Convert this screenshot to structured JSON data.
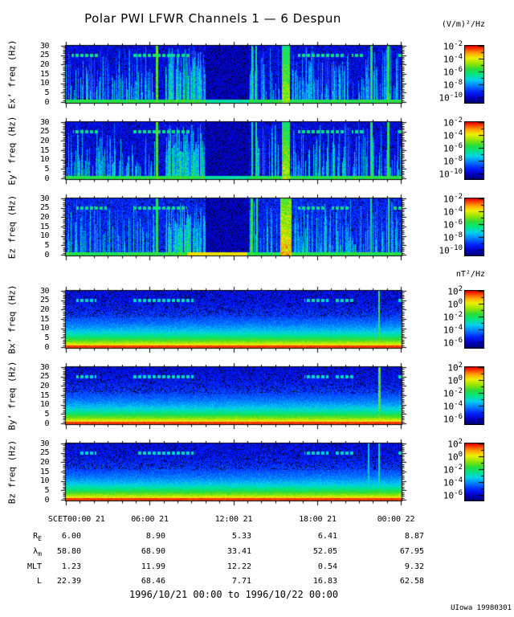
{
  "title": "Polar PWI LFWR Channels 1 — 6 Despun",
  "units": {
    "electric": "(V/m)²/Hz",
    "magnetic": "nT²/Hz"
  },
  "caption": "1996/10/21 00:00 to 1996/10/22 00:00",
  "credit": "UIowa 19980301",
  "time_axis": {
    "prefix": "SCET",
    "tick_labels": [
      "00:00 21",
      "06:00 21",
      "12:00 21",
      "18:00 21",
      "00:00 22"
    ],
    "hours_span": 24,
    "major_every_hours": 6,
    "minor_every_hours": 1
  },
  "ephemeris": [
    {
      "name": "R_E",
      "values": [
        "6.00",
        "8.90",
        "5.33",
        "6.41",
        "8.87"
      ]
    },
    {
      "name": "λ_m",
      "values": [
        "58.80",
        "68.90",
        "33.41",
        "52.05",
        "67.95"
      ]
    },
    {
      "name": "MLT",
      "values": [
        "1.23",
        "11.99",
        "12.22",
        "0.54",
        "9.32"
      ]
    },
    {
      "name": "L",
      "values": [
        "22.39",
        "68.46",
        "7.71",
        "16.83",
        "62.58"
      ]
    }
  ],
  "chart_data": {
    "type": "heatmap",
    "title": "Polar PWI LFWR Channels 1 — 6 Despun",
    "x_range": [
      "1996/10/21 00:00",
      "1996/10/22 00:00"
    ],
    "x_tick_labels": [
      "00:00 21",
      "06:00 21",
      "12:00 21",
      "18:00 21",
      "00:00 22"
    ],
    "ylim": [
      0,
      30
    ],
    "yticks": [
      0,
      5,
      10,
      15,
      20,
      25,
      30
    ],
    "colormap": "rainbow blue-to-red",
    "legend_position": "right colorbars",
    "panels": [
      {
        "id": "ex",
        "ylabel": "Ex’ freq (Hz)",
        "kind": "E",
        "seed": 11,
        "colorbar": {
          "unit": "(V/m)²/Hz",
          "ticks": [
            "10^-2",
            "10^-4",
            "10^-6",
            "10^-8",
            "10^-10"
          ],
          "span_decades": 8.8
        },
        "features": {
          "streak_regions": [
            {
              "t0": 0.0,
              "t1": 0.27,
              "density": 0.52,
              "v": 0.5
            },
            {
              "t0": 0.295,
              "t1": 0.415,
              "density": 0.92,
              "v": 0.6,
              "hmin": 14,
              "hmax": 29
            },
            {
              "t0": 0.545,
              "t1": 0.635,
              "density": 0.38,
              "v": 0.52
            },
            {
              "t0": 0.668,
              "t1": 0.825,
              "density": 0.62,
              "v": 0.52
            },
            {
              "t0": 0.825,
              "t1": 1.0,
              "density": 0.5,
              "v": 0.5
            }
          ],
          "quiet": [
            [
              0.415,
              0.545
            ]
          ],
          "vlines": [
            {
              "t": 0.27,
              "v": 0.68,
              "w": 1.5
            },
            {
              "t": 0.553,
              "v": 0.55,
              "w": 1
            },
            {
              "t": 0.565,
              "v": 0.55,
              "w": 1
            },
            {
              "t": 0.909,
              "v": 0.6,
              "w": 1.5
            },
            {
              "t": 0.96,
              "v": 0.6,
              "w": 1.5
            }
          ],
          "band": {
            "t0": 0.643,
            "t1": 0.666,
            "v": 0.8
          },
          "dash25": [
            [
              0.015,
              0.1
            ],
            [
              0.2,
              0.37
            ],
            [
              0.69,
              0.83
            ],
            [
              0.85,
              0.885
            ],
            [
              0.99,
              1.0
            ]
          ],
          "bottom_hot": []
        }
      },
      {
        "id": "ey",
        "ylabel": "Ey’ freq (Hz)",
        "kind": "E",
        "seed": 22,
        "colorbar": {
          "unit": "(V/m)²/Hz",
          "ticks": [
            "10^-2",
            "10^-4",
            "10^-6",
            "10^-8",
            "10^-10"
          ],
          "span_decades": 8.8
        },
        "features": {
          "streak_regions": [
            {
              "t0": 0.0,
              "t1": 0.27,
              "density": 0.55,
              "v": 0.5
            },
            {
              "t0": 0.295,
              "t1": 0.415,
              "density": 0.9,
              "v": 0.6,
              "hmin": 14,
              "hmax": 29
            },
            {
              "t0": 0.545,
              "t1": 0.635,
              "density": 0.4,
              "v": 0.52
            },
            {
              "t0": 0.668,
              "t1": 0.825,
              "density": 0.6,
              "v": 0.52
            },
            {
              "t0": 0.825,
              "t1": 1.0,
              "density": 0.5,
              "v": 0.5
            }
          ],
          "quiet": [
            [
              0.415,
              0.545
            ]
          ],
          "vlines": [
            {
              "t": 0.27,
              "v": 0.66,
              "w": 1.5
            },
            {
              "t": 0.553,
              "v": 0.55,
              "w": 1
            },
            {
              "t": 0.565,
              "v": 0.55,
              "w": 1
            },
            {
              "t": 0.909,
              "v": 0.6,
              "w": 1.5
            },
            {
              "t": 0.96,
              "v": 0.6,
              "w": 1.5
            }
          ],
          "band": {
            "t0": 0.643,
            "t1": 0.666,
            "v": 0.82
          },
          "dash25": [
            [
              0.02,
              0.1
            ],
            [
              0.2,
              0.37
            ],
            [
              0.69,
              0.83
            ],
            [
              0.85,
              0.885
            ],
            [
              0.99,
              1.0
            ]
          ],
          "bottom_hot": []
        }
      },
      {
        "id": "ez",
        "ylabel": "Ez freq (Hz)",
        "kind": "E",
        "seed": 33,
        "colorbar": {
          "unit": "(V/m)²/Hz",
          "ticks": [
            "10^-2",
            "10^-4",
            "10^-6",
            "10^-8",
            "10^-10"
          ],
          "span_decades": 8.8
        },
        "features": {
          "bg_boost": 0.05,
          "streak_regions": [
            {
              "t0": 0.0,
              "t1": 0.27,
              "density": 0.5,
              "v": 0.52
            },
            {
              "t0": 0.295,
              "t1": 0.415,
              "density": 0.9,
              "v": 0.6,
              "hmin": 14,
              "hmax": 29
            },
            {
              "t0": 0.545,
              "t1": 0.635,
              "density": 0.4,
              "v": 0.55
            },
            {
              "t0": 0.675,
              "t1": 0.825,
              "density": 0.62,
              "v": 0.52
            },
            {
              "t0": 0.825,
              "t1": 1.0,
              "density": 0.48,
              "v": 0.5
            }
          ],
          "quiet": [
            [
              0.415,
              0.545
            ]
          ],
          "vlines": [
            {
              "t": 0.27,
              "v": 0.6,
              "w": 1.5
            },
            {
              "t": 0.553,
              "v": 0.62,
              "w": 1.5
            },
            {
              "t": 0.568,
              "v": 0.6,
              "w": 1
            },
            {
              "t": 0.909,
              "v": 0.55,
              "w": 1
            },
            {
              "t": 0.96,
              "v": 0.55,
              "w": 1
            }
          ],
          "band": {
            "t0": 0.637,
            "t1": 0.672,
            "v": 0.95
          },
          "dash25": [
            [
              0.03,
              0.12
            ],
            [
              0.195,
              0.36
            ],
            [
              0.69,
              0.77
            ],
            [
              0.79,
              0.845
            ],
            [
              0.97,
              1.0
            ]
          ],
          "bottom_hot": [
            {
              "t0": 0.36,
              "t1": 0.54,
              "v": 0.75
            }
          ]
        }
      },
      {
        "id": "bx",
        "ylabel": "Bx’ freq (Hz)",
        "kind": "B",
        "seed": 44,
        "colorbar": {
          "unit": "nT²/Hz",
          "ticks": [
            "10^2",
            "10^0",
            "10^-2",
            "10^-4",
            "10^-6"
          ],
          "span_decades": 8.8
        },
        "features": {
          "gradient": {
            "floor": 0.12,
            "amp": 0.8,
            "scale": 8
          },
          "dash25": [
            [
              0.03,
              0.09
            ],
            [
              0.2,
              0.38
            ],
            [
              0.71,
              0.78
            ],
            [
              0.8,
              0.86
            ],
            [
              0.99,
              1.0
            ]
          ],
          "vlines": [
            {
              "t": 0.933,
              "v": 0.62,
              "w": 1
            }
          ]
        }
      },
      {
        "id": "by",
        "ylabel": "By’ freq (Hz)",
        "kind": "B",
        "seed": 55,
        "colorbar": {
          "unit": "nT²/Hz",
          "ticks": [
            "10^2",
            "10^0",
            "10^-2",
            "10^-4",
            "10^-6"
          ],
          "span_decades": 8.8
        },
        "features": {
          "gradient": {
            "floor": 0.12,
            "amp": 0.8,
            "scale": 8
          },
          "dash25": [
            [
              0.03,
              0.09
            ],
            [
              0.2,
              0.38
            ],
            [
              0.71,
              0.78
            ],
            [
              0.8,
              0.86
            ],
            [
              0.99,
              1.0
            ]
          ],
          "vlines": [
            {
              "t": 0.933,
              "v": 0.66,
              "w": 1.5
            }
          ]
        }
      },
      {
        "id": "bz",
        "ylabel": "Bz freq (Hz)",
        "kind": "B",
        "seed": 66,
        "colorbar": {
          "unit": "nT²/Hz",
          "ticks": [
            "10^2",
            "10^0",
            "10^-2",
            "10^-4",
            "10^-6"
          ],
          "span_decades": 8.8
        },
        "features": {
          "gradient": {
            "floor": 0.12,
            "amp": 0.8,
            "scale": 8
          },
          "dash25": [
            [
              0.04,
              0.09
            ],
            [
              0.21,
              0.38
            ],
            [
              0.71,
              0.78
            ],
            [
              0.8,
              0.86
            ],
            [
              0.99,
              1.0
            ]
          ],
          "vlines": [
            {
              "t": 0.9,
              "v": 0.45,
              "w": 1
            },
            {
              "t": 0.933,
              "v": 0.5,
              "w": 1
            }
          ]
        }
      }
    ]
  }
}
